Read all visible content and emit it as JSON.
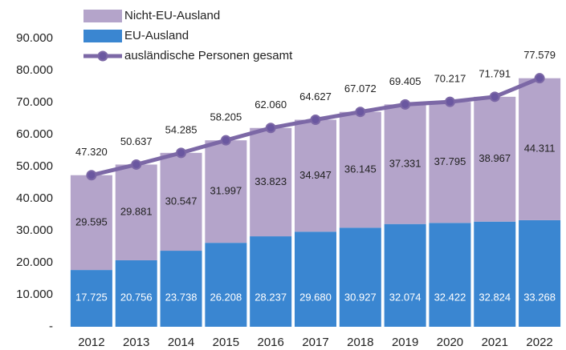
{
  "chart_data": {
    "type": "bar",
    "categories": [
      "2012",
      "2013",
      "2014",
      "2015",
      "2016",
      "2017",
      "2018",
      "2019",
      "2020",
      "2021",
      "2022"
    ],
    "series": [
      {
        "name": "EU-Ausland",
        "color": "#3a86d1",
        "values": [
          17725,
          20756,
          23738,
          26208,
          28237,
          29680,
          30927,
          32074,
          32422,
          32824,
          33268
        ],
        "value_labels": [
          "17.725",
          "20.756",
          "23.738",
          "26.208",
          "28.237",
          "29.680",
          "30.927",
          "32.074",
          "32.422",
          "32.824",
          "33.268"
        ]
      },
      {
        "name": "Nicht-EU-Ausland",
        "color": "#b4a4ca",
        "values": [
          29595,
          29881,
          30547,
          31997,
          33823,
          34947,
          36145,
          37331,
          37795,
          38967,
          44311
        ],
        "value_labels": [
          "29.595",
          "29.881",
          "30.547",
          "31.997",
          "33.823",
          "34.947",
          "36.145",
          "37.331",
          "37.795",
          "38.967",
          "44.311"
        ]
      },
      {
        "name": "ausländische Personen gesamt",
        "color": "#7c68a6",
        "type": "line",
        "values": [
          47320,
          50637,
          54285,
          58205,
          62060,
          64627,
          67072,
          69405,
          70217,
          71791,
          77579
        ],
        "value_labels": [
          "47.320",
          "50.637",
          "54.285",
          "58.205",
          "62.060",
          "64.627",
          "67.072",
          "69.405",
          "70.217",
          "71.791",
          "77.579"
        ]
      }
    ],
    "ylim": [
      0,
      90000
    ],
    "yticks": [
      {
        "value": 0,
        "label": "-"
      },
      {
        "value": 10000,
        "label": "10.000"
      },
      {
        "value": 20000,
        "label": "20.000"
      },
      {
        "value": 30000,
        "label": "30.000"
      },
      {
        "value": 40000,
        "label": "40.000"
      },
      {
        "value": 50000,
        "label": "50.000"
      },
      {
        "value": 60000,
        "label": "60.000"
      },
      {
        "value": 70000,
        "label": "70.000"
      },
      {
        "value": 80000,
        "label": "80.000"
      },
      {
        "value": 90000,
        "label": "90.000"
      }
    ],
    "grid": false,
    "legend": "upper left"
  }
}
